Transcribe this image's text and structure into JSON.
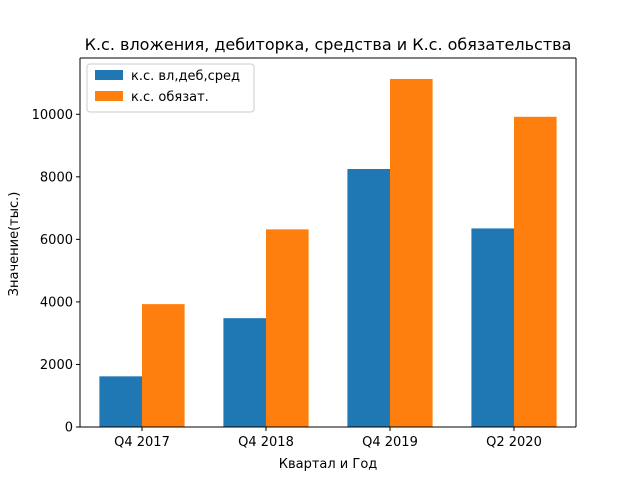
{
  "chart_data": {
    "type": "bar",
    "title": "К.с. вложения, дебиторка, средства и К.с. обязательства",
    "xlabel": "Квартал и Год",
    "ylabel": "Значение(тыс.)",
    "categories": [
      "Q4 2017",
      "Q4 2018",
      "Q4 2019",
      "Q2 2020"
    ],
    "series": [
      {
        "name": "к.с. вл,деб,сред",
        "values": [
          1620,
          3480,
          8250,
          6350
        ],
        "color": "#1f77b4"
      },
      {
        "name": "к.с. обязат.",
        "values": [
          3930,
          6320,
          11130,
          9920
        ],
        "color": "#ff7f0e"
      }
    ],
    "ylim": [
      0,
      11800
    ],
    "yticks": [
      0,
      2000,
      4000,
      6000,
      8000,
      10000
    ],
    "grid": false,
    "legend_position": "top-left"
  }
}
